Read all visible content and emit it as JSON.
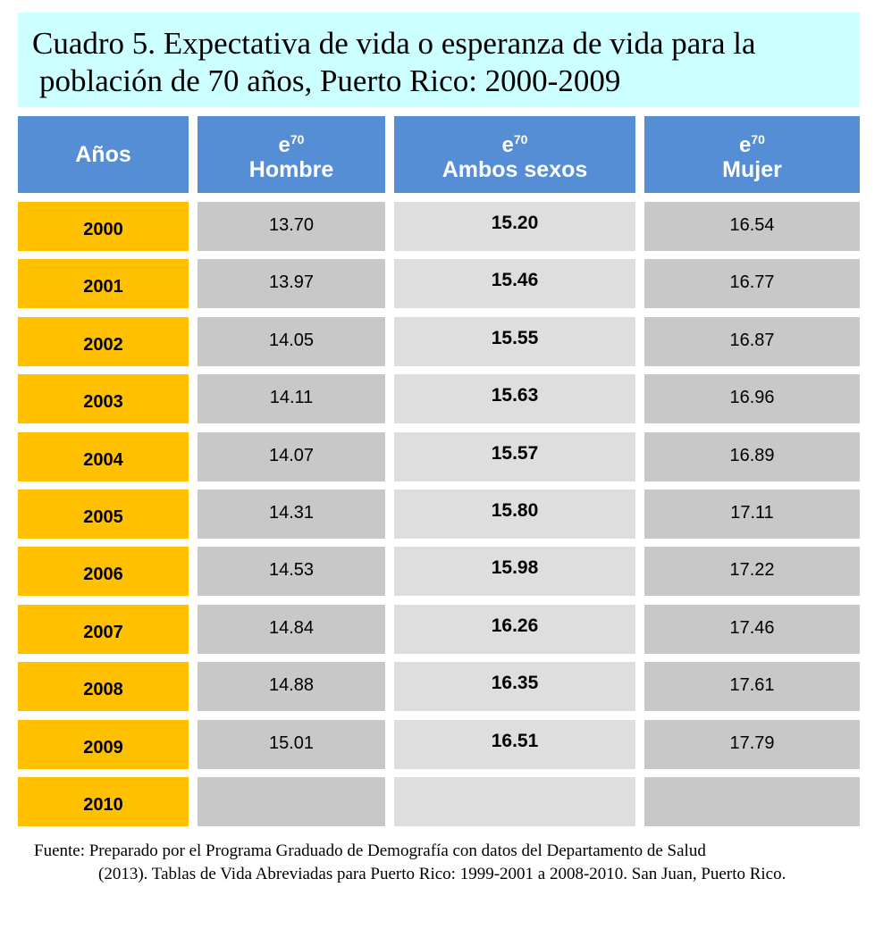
{
  "title": {
    "line1": "Cuadro 5. Expectativa de vida o esperanza de vida para la",
    "line2": "población de 70 años, Puerto Rico: 2000-2009"
  },
  "headers": {
    "years": "Años",
    "symbol_base": "e",
    "symbol_sup": "70",
    "men": "Hombre",
    "both": "Ambos sexos",
    "women": "Mujer"
  },
  "rows": [
    {
      "year": "2000",
      "men": "13.70",
      "both": "15.20",
      "women": "16.54"
    },
    {
      "year": "2001",
      "men": "13.97",
      "both": "15.46",
      "women": "16.77"
    },
    {
      "year": "2002",
      "men": "14.05",
      "both": "15.55",
      "women": "16.87"
    },
    {
      "year": "2003",
      "men": "14.11",
      "both": "15.63",
      "women": "16.96"
    },
    {
      "year": "2004",
      "men": "14.07",
      "both": "15.57",
      "women": "16.89"
    },
    {
      "year": "2005",
      "men": "14.31",
      "both": "15.80",
      "women": "17.11"
    },
    {
      "year": "2006",
      "men": "14.53",
      "both": "15.98",
      "women": "17.22"
    },
    {
      "year": "2007",
      "men": "14.84",
      "both": "16.26",
      "women": "17.46"
    },
    {
      "year": "2008",
      "men": "14.88",
      "both": "16.35",
      "women": "17.61"
    },
    {
      "year": "2009",
      "men": "15.01",
      "both": "16.51",
      "women": "17.79"
    },
    {
      "year": "2010",
      "men": "",
      "both": "",
      "women": ""
    }
  ],
  "source": {
    "lead": "Fuente: Preparado por el Programa Graduado de Demografía con datos del Departamento de Salud",
    "rest": "(2013). Tablas de Vida Abreviadas para Puerto Rico: 1999-2001 a  2008-2010. San Juan, Puerto Rico."
  },
  "colors": {
    "title_bg": "#ccffff",
    "header_bg": "#558ed5",
    "year_bg": "#ffc000",
    "cell_dark": "#c8c8c8",
    "cell_light": "#dedede"
  }
}
